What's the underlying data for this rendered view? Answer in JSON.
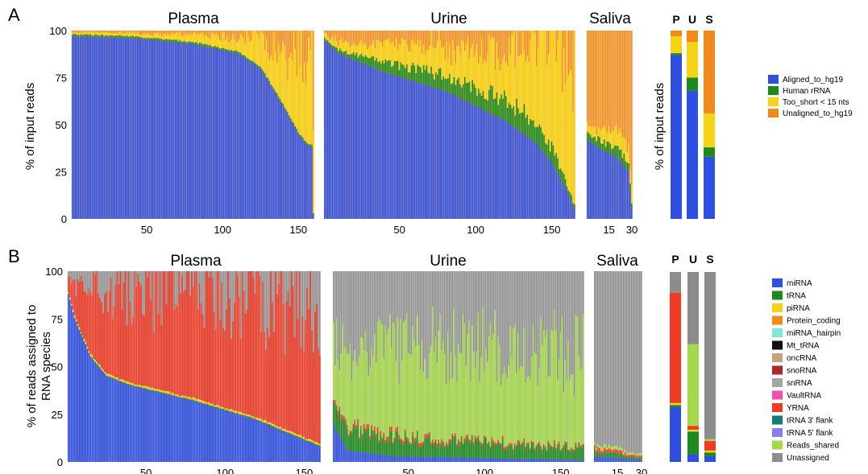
{
  "figure": {
    "panels": [
      {
        "letter": "A",
        "ylabel": "% of input reads",
        "summary_ylabel": "% of input reads",
        "summary_headers": [
          "P",
          "U",
          "S"
        ],
        "y_ticks": [
          "0",
          "25",
          "50",
          "75",
          "100"
        ],
        "legend": [
          {
            "label": "Aligned_to_hg19",
            "color": "#2f4fe0"
          },
          {
            "label": "Human rRNA",
            "color": "#1c8a1c"
          },
          {
            "label": "Too_short < 15 nts",
            "color": "#f5d316"
          },
          {
            "label": "Unaligned_to_hg19",
            "color": "#f28a1a"
          }
        ]
      },
      {
        "letter": "B",
        "ylabel": "% of reads assigned to RNA species",
        "ylabel_lines": [
          "% of reads assigned to",
          "RNA species"
        ],
        "summary_ylabel": "",
        "summary_headers": [
          "P",
          "U",
          "S"
        ],
        "y_ticks": [
          "0",
          "25",
          "50",
          "75",
          "100"
        ],
        "legend": [
          {
            "label": "miRNA",
            "color": "#2f4fe0"
          },
          {
            "label": "tRNA",
            "color": "#1c8a1c"
          },
          {
            "label": "piRNA",
            "color": "#f5d316"
          },
          {
            "label": "Protein_coding",
            "color": "#f28a1a"
          },
          {
            "label": "miRNA_hairpin",
            "color": "#7fe8d2"
          },
          {
            "label": "Mt_tRNA",
            "color": "#111111"
          },
          {
            "label": "oncRNA",
            "color": "#c8a27a"
          },
          {
            "label": "snoRNA",
            "color": "#a8282c"
          },
          {
            "label": "snRNA",
            "color": "#a5a5a5"
          },
          {
            "label": "VaultRNA",
            "color": "#f24fb0"
          },
          {
            "label": "YRNA",
            "color": "#ef3a26"
          },
          {
            "label": "tRNA  3' flank",
            "color": "#157a7a"
          },
          {
            "label": "tRNA  5' flank",
            "color": "#8a7bf0"
          },
          {
            "label": "Reads_shared",
            "color": "#a6d94a"
          },
          {
            "label": "Unassigned",
            "color": "#8c8c8c"
          }
        ]
      }
    ]
  },
  "chart_data": [
    {
      "type": "bar",
      "stacked": true,
      "panel": "A",
      "title": "Plasma",
      "n_samples": 160,
      "x_ticks": [
        50,
        100,
        150
      ],
      "ylim": [
        0,
        100
      ],
      "series": [
        {
          "name": "Aligned_to_hg19",
          "color": "#2f4fe0",
          "x": [
            1,
            40,
            80,
            110,
            125,
            140,
            150,
            155,
            159,
            160
          ],
          "values": [
            97,
            96,
            93,
            88,
            80,
            60,
            45,
            40,
            38,
            2
          ]
        },
        {
          "name": "Human rRNA",
          "color": "#1c8a1c",
          "x": [
            1,
            160
          ],
          "values": [
            1,
            1
          ]
        },
        {
          "name": "Too_short < 15 nts",
          "color": "#f5d316",
          "x": [
            1,
            60,
            110,
            140,
            160
          ],
          "values": [
            1,
            2,
            7,
            25,
            55
          ]
        },
        {
          "name": "Unaligned_to_hg19",
          "color": "#f28a1a"
        }
      ]
    },
    {
      "type": "bar",
      "stacked": true,
      "panel": "A",
      "title": "Urine",
      "n_samples": 165,
      "x_ticks": [
        50,
        100,
        150
      ],
      "ylim": [
        0,
        100
      ],
      "series": [
        {
          "name": "Aligned_to_hg19",
          "color": "#2f4fe0",
          "x": [
            1,
            10,
            40,
            80,
            120,
            140,
            150,
            160,
            165
          ],
          "values": [
            95,
            88,
            78,
            68,
            52,
            40,
            30,
            15,
            5
          ]
        },
        {
          "name": "Human rRNA",
          "color": "#1c8a1c",
          "x": [
            1,
            50,
            100,
            140,
            165
          ],
          "values": [
            1,
            6,
            10,
            12,
            2
          ]
        },
        {
          "name": "Too_short < 15 nts",
          "color": "#f5d316",
          "x": [
            1,
            60,
            120,
            165
          ],
          "values": [
            3,
            12,
            25,
            85
          ]
        },
        {
          "name": "Unaligned_to_hg19",
          "color": "#f28a1a"
        }
      ]
    },
    {
      "type": "bar",
      "stacked": true,
      "panel": "A",
      "title": "Saliva",
      "n_samples": 30,
      "x_ticks": [
        15,
        30
      ],
      "ylim": [
        0,
        100
      ],
      "series": [
        {
          "name": "Aligned_to_hg19",
          "color": "#2f4fe0",
          "x": [
            1,
            10,
            20,
            28,
            30
          ],
          "values": [
            42,
            37,
            33,
            25,
            5
          ]
        },
        {
          "name": "Human rRNA",
          "color": "#1c8a1c",
          "x": [
            1,
            30
          ],
          "values": [
            4,
            5
          ]
        },
        {
          "name": "Too_short < 15 nts",
          "color": "#f5d316",
          "x": [
            1,
            30
          ],
          "values": [
            5,
            10
          ]
        },
        {
          "name": "Unaligned_to_hg19",
          "color": "#f28a1a"
        }
      ]
    },
    {
      "type": "bar",
      "stacked": true,
      "panel": "A",
      "title": "",
      "categories": [
        "P",
        "U",
        "S"
      ],
      "ylim": [
        0,
        100
      ],
      "series": [
        {
          "name": "Aligned_to_hg19",
          "color": "#2f4fe0",
          "values": [
            87,
            68,
            33
          ]
        },
        {
          "name": "Human rRNA",
          "color": "#1c8a1c",
          "values": [
            1,
            7,
            5
          ]
        },
        {
          "name": "Too_short < 15 nts",
          "color": "#f5d316",
          "values": [
            9,
            19,
            18
          ]
        },
        {
          "name": "Unaligned_to_hg19",
          "color": "#f28a1a",
          "values": [
            3,
            6,
            44
          ]
        }
      ]
    },
    {
      "type": "bar",
      "stacked": true,
      "panel": "B",
      "title": "Plasma",
      "n_samples": 160,
      "x_ticks": [
        50,
        100,
        150
      ],
      "ylim": [
        0,
        100
      ],
      "series": [
        {
          "name": "miRNA",
          "color": "#2f4fe0",
          "x": [
            1,
            5,
            15,
            25,
            40,
            80,
            120,
            160
          ],
          "values": [
            88,
            75,
            55,
            45,
            40,
            32,
            22,
            8
          ]
        },
        {
          "name": "tRNA",
          "color": "#1c8a1c",
          "x": [
            1,
            160
          ],
          "values": [
            0.5,
            0.5
          ]
        },
        {
          "name": "piRNA",
          "color": "#f5d316",
          "x": [
            1,
            160
          ],
          "values": [
            1,
            1
          ]
        },
        {
          "name": "YRNA",
          "color": "#ef3a26",
          "x": [
            1,
            20,
            80,
            160
          ],
          "values": [
            8,
            40,
            58,
            72
          ]
        },
        {
          "name": "Unassigned",
          "color": "#8c8c8c"
        }
      ]
    },
    {
      "type": "bar",
      "stacked": true,
      "panel": "B",
      "title": "Urine",
      "n_samples": 165,
      "x_ticks": [
        50,
        100,
        150
      ],
      "ylim": [
        0,
        100
      ],
      "series": [
        {
          "name": "miRNA",
          "color": "#2f4fe0",
          "x": [
            1,
            10,
            40,
            100,
            165
          ],
          "values": [
            20,
            6,
            3,
            2,
            1
          ]
        },
        {
          "name": "tRNA",
          "color": "#1c8a1c",
          "x": [
            1,
            20,
            80,
            165
          ],
          "values": [
            15,
            10,
            8,
            6
          ]
        },
        {
          "name": "YRNA",
          "color": "#ef3a26",
          "x": [
            1,
            165
          ],
          "values": [
            2,
            1
          ]
        },
        {
          "name": "Reads_shared",
          "color": "#a6d94a",
          "x": [
            1,
            20,
            80,
            165
          ],
          "values": [
            30,
            45,
            50,
            48
          ]
        },
        {
          "name": "Unassigned",
          "color": "#8c8c8c"
        }
      ]
    },
    {
      "type": "bar",
      "stacked": true,
      "panel": "B",
      "title": "Saliva",
      "n_samples": 30,
      "x_ticks": [
        15,
        30
      ],
      "ylim": [
        0,
        100
      ],
      "series": [
        {
          "name": "miRNA",
          "color": "#2f4fe0",
          "x": [
            1,
            30
          ],
          "values": [
            3,
            1
          ]
        },
        {
          "name": "tRNA",
          "color": "#1c8a1c",
          "x": [
            1,
            30
          ],
          "values": [
            3,
            1
          ]
        },
        {
          "name": "YRNA",
          "color": "#ef3a26",
          "x": [
            1,
            30
          ],
          "values": [
            2,
            1
          ]
        },
        {
          "name": "Reads_shared",
          "color": "#a6d94a",
          "x": [
            1,
            30
          ],
          "values": [
            2,
            1
          ]
        },
        {
          "name": "Unassigned",
          "color": "#8c8c8c"
        }
      ]
    },
    {
      "type": "bar",
      "stacked": true,
      "panel": "B",
      "title": "",
      "categories": [
        "P",
        "U",
        "S"
      ],
      "ylim": [
        0,
        100
      ],
      "series": [
        {
          "name": "miRNA",
          "color": "#2f4fe0",
          "values": [
            29,
            4,
            3
          ]
        },
        {
          "name": "tRNA",
          "color": "#1c8a1c",
          "values": [
            1,
            12,
            2
          ]
        },
        {
          "name": "piRNA",
          "color": "#f5d316",
          "values": [
            1,
            1,
            1
          ]
        },
        {
          "name": "YRNA",
          "color": "#ef3a26",
          "values": [
            58,
            2,
            5
          ]
        },
        {
          "name": "Reads_shared",
          "color": "#a6d94a",
          "values": [
            0,
            43,
            1
          ]
        },
        {
          "name": "Unassigned",
          "color": "#8c8c8c",
          "values": [
            11,
            38,
            88
          ]
        }
      ]
    }
  ]
}
